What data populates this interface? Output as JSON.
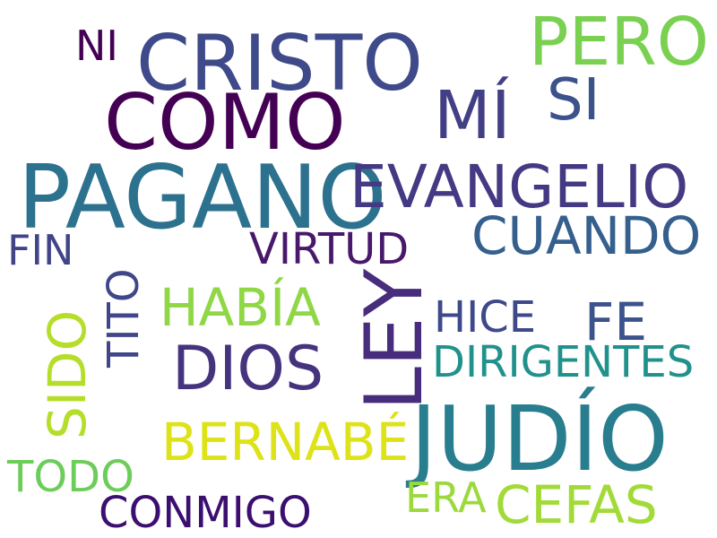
{
  "words": [
    {
      "text": "PAGANO",
      "color": "#2c728e"
    },
    {
      "text": "JUDÍO",
      "color": "#287d8e"
    },
    {
      "text": "CRISTO",
      "color": "#3e4a89"
    },
    {
      "text": "COMO",
      "color": "#440154"
    },
    {
      "text": "LEY",
      "color": "#472d7b"
    },
    {
      "text": "EVANGELIO",
      "color": "#443983"
    },
    {
      "text": "PERO",
      "color": "#7ad151"
    },
    {
      "text": "MÍ",
      "color": "#423f85"
    },
    {
      "text": "SI",
      "color": "#3b528b"
    },
    {
      "text": "DIOS",
      "color": "#46337e"
    },
    {
      "text": "CUANDO",
      "color": "#355f8d"
    },
    {
      "text": "HABÍA",
      "color": "#8fd744"
    },
    {
      "text": "BERNABÉ",
      "color": "#dde318"
    },
    {
      "text": "CEFAS",
      "color": "#a2da37"
    },
    {
      "text": "VIRTUD",
      "color": "#48186a"
    },
    {
      "text": "FE",
      "color": "#3b528b"
    },
    {
      "text": "DIRIGENTES",
      "color": "#21918c"
    },
    {
      "text": "SIDO",
      "color": "#b5de2b"
    },
    {
      "text": "TITO",
      "color": "#404688"
    },
    {
      "text": "HICE",
      "color": "#3e4989"
    },
    {
      "text": "CONMIGO",
      "color": "#3b0f70"
    },
    {
      "text": "TODO",
      "color": "#6ccd5a"
    },
    {
      "text": "ERA",
      "color": "#9bd93c"
    },
    {
      "text": "FIN",
      "color": "#414487"
    },
    {
      "text": "NI",
      "color": "#440154"
    }
  ]
}
